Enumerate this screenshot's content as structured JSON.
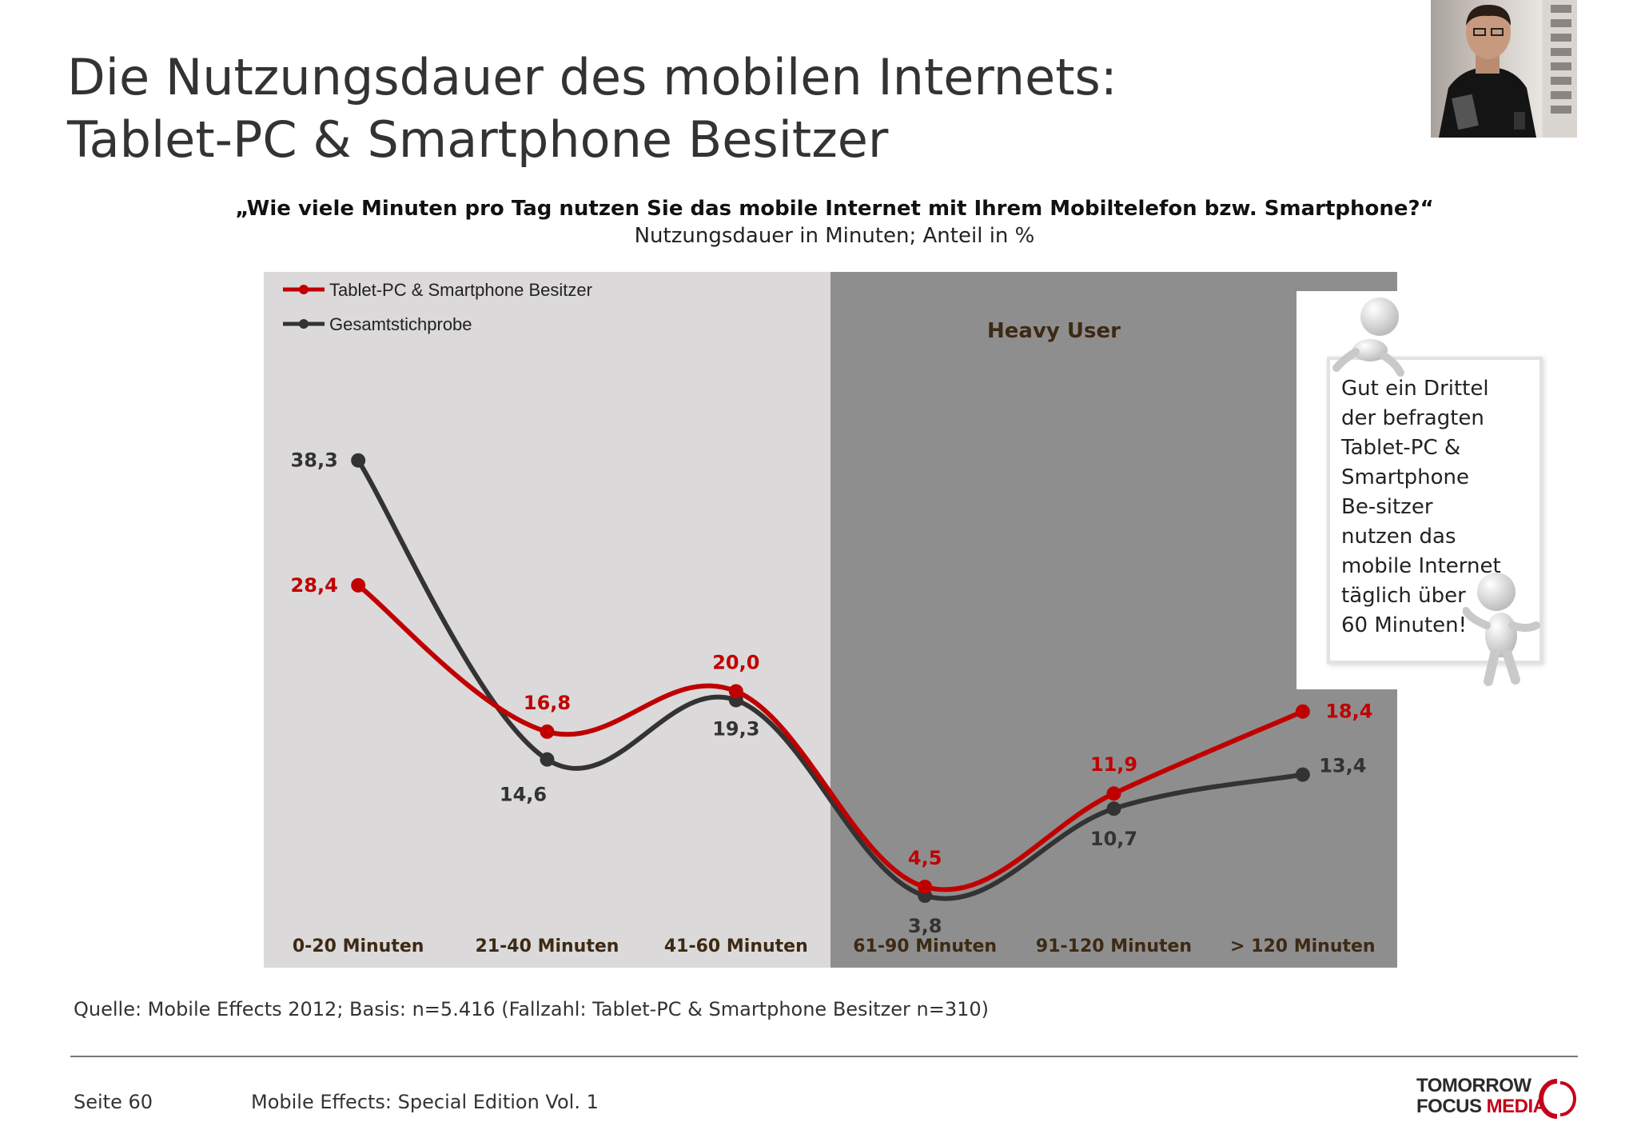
{
  "title_line1": "Die Nutzungsdauer des mobilen Internets:",
  "title_line2": "Tablet-PC & Smartphone Besitzer",
  "question": "„Wie viele Minuten pro Tag nutzen Sie das mobile Internet mit Ihrem Mobiltelefon bzw. Smartphone?“",
  "subtitle": "Nutzungsdauer in Minuten; Anteil in %",
  "callout": "Gut ein Drittel\nder befragten\nTablet-PC &\nSmartphone\nBe-sitzer\nnutzen das\nmobile Internet\ntäglich über\n60 Minuten!",
  "source": "Quelle: Mobile Effects 2012; Basis: n=5.416 (Fallzahl: Tablet-PC & Smartphone Besitzer n=310)",
  "footer": {
    "page": "Seite 60",
    "edition": "Mobile Effects: Special Edition Vol. 1"
  },
  "logo": {
    "line1": "TOMORROW",
    "line2a": "FOCUS ",
    "line2b": "MEDIA"
  },
  "colors": {
    "tablet": "#c00000",
    "gesamt": "#333333",
    "panel_light": "#dbd9da",
    "panel_dark": "#8f8e8f",
    "axis_label": "#3d2a13"
  },
  "chart_data": {
    "type": "line",
    "categories": [
      "0-20 Minuten",
      "21-40 Minuten",
      "41-60 Minuten",
      "61-90 Minuten",
      "91-120 Minuten",
      "> 120 Minuten"
    ],
    "series": [
      {
        "name": "Tablet-PC & Smartphone Besitzer",
        "values": [
          28.4,
          16.8,
          20.0,
          4.5,
          11.9,
          18.4
        ],
        "labels": [
          "28,4",
          "16,8",
          "20,0",
          "4,5",
          "11,9",
          "18,4"
        ]
      },
      {
        "name": "Gesamtstichprobe",
        "values": [
          38.3,
          14.6,
          19.3,
          3.8,
          10.7,
          13.4
        ],
        "labels": [
          "38,3",
          "14,6",
          "19,3",
          "3,8",
          "10,7",
          "13,4"
        ]
      }
    ],
    "highlight_region": {
      "label": "Heavy User",
      "from_category": "61-90 Minuten",
      "to_category": "> 120 Minuten"
    },
    "ylim": [
      0,
      45
    ],
    "legend": "top-left",
    "grid": false
  }
}
